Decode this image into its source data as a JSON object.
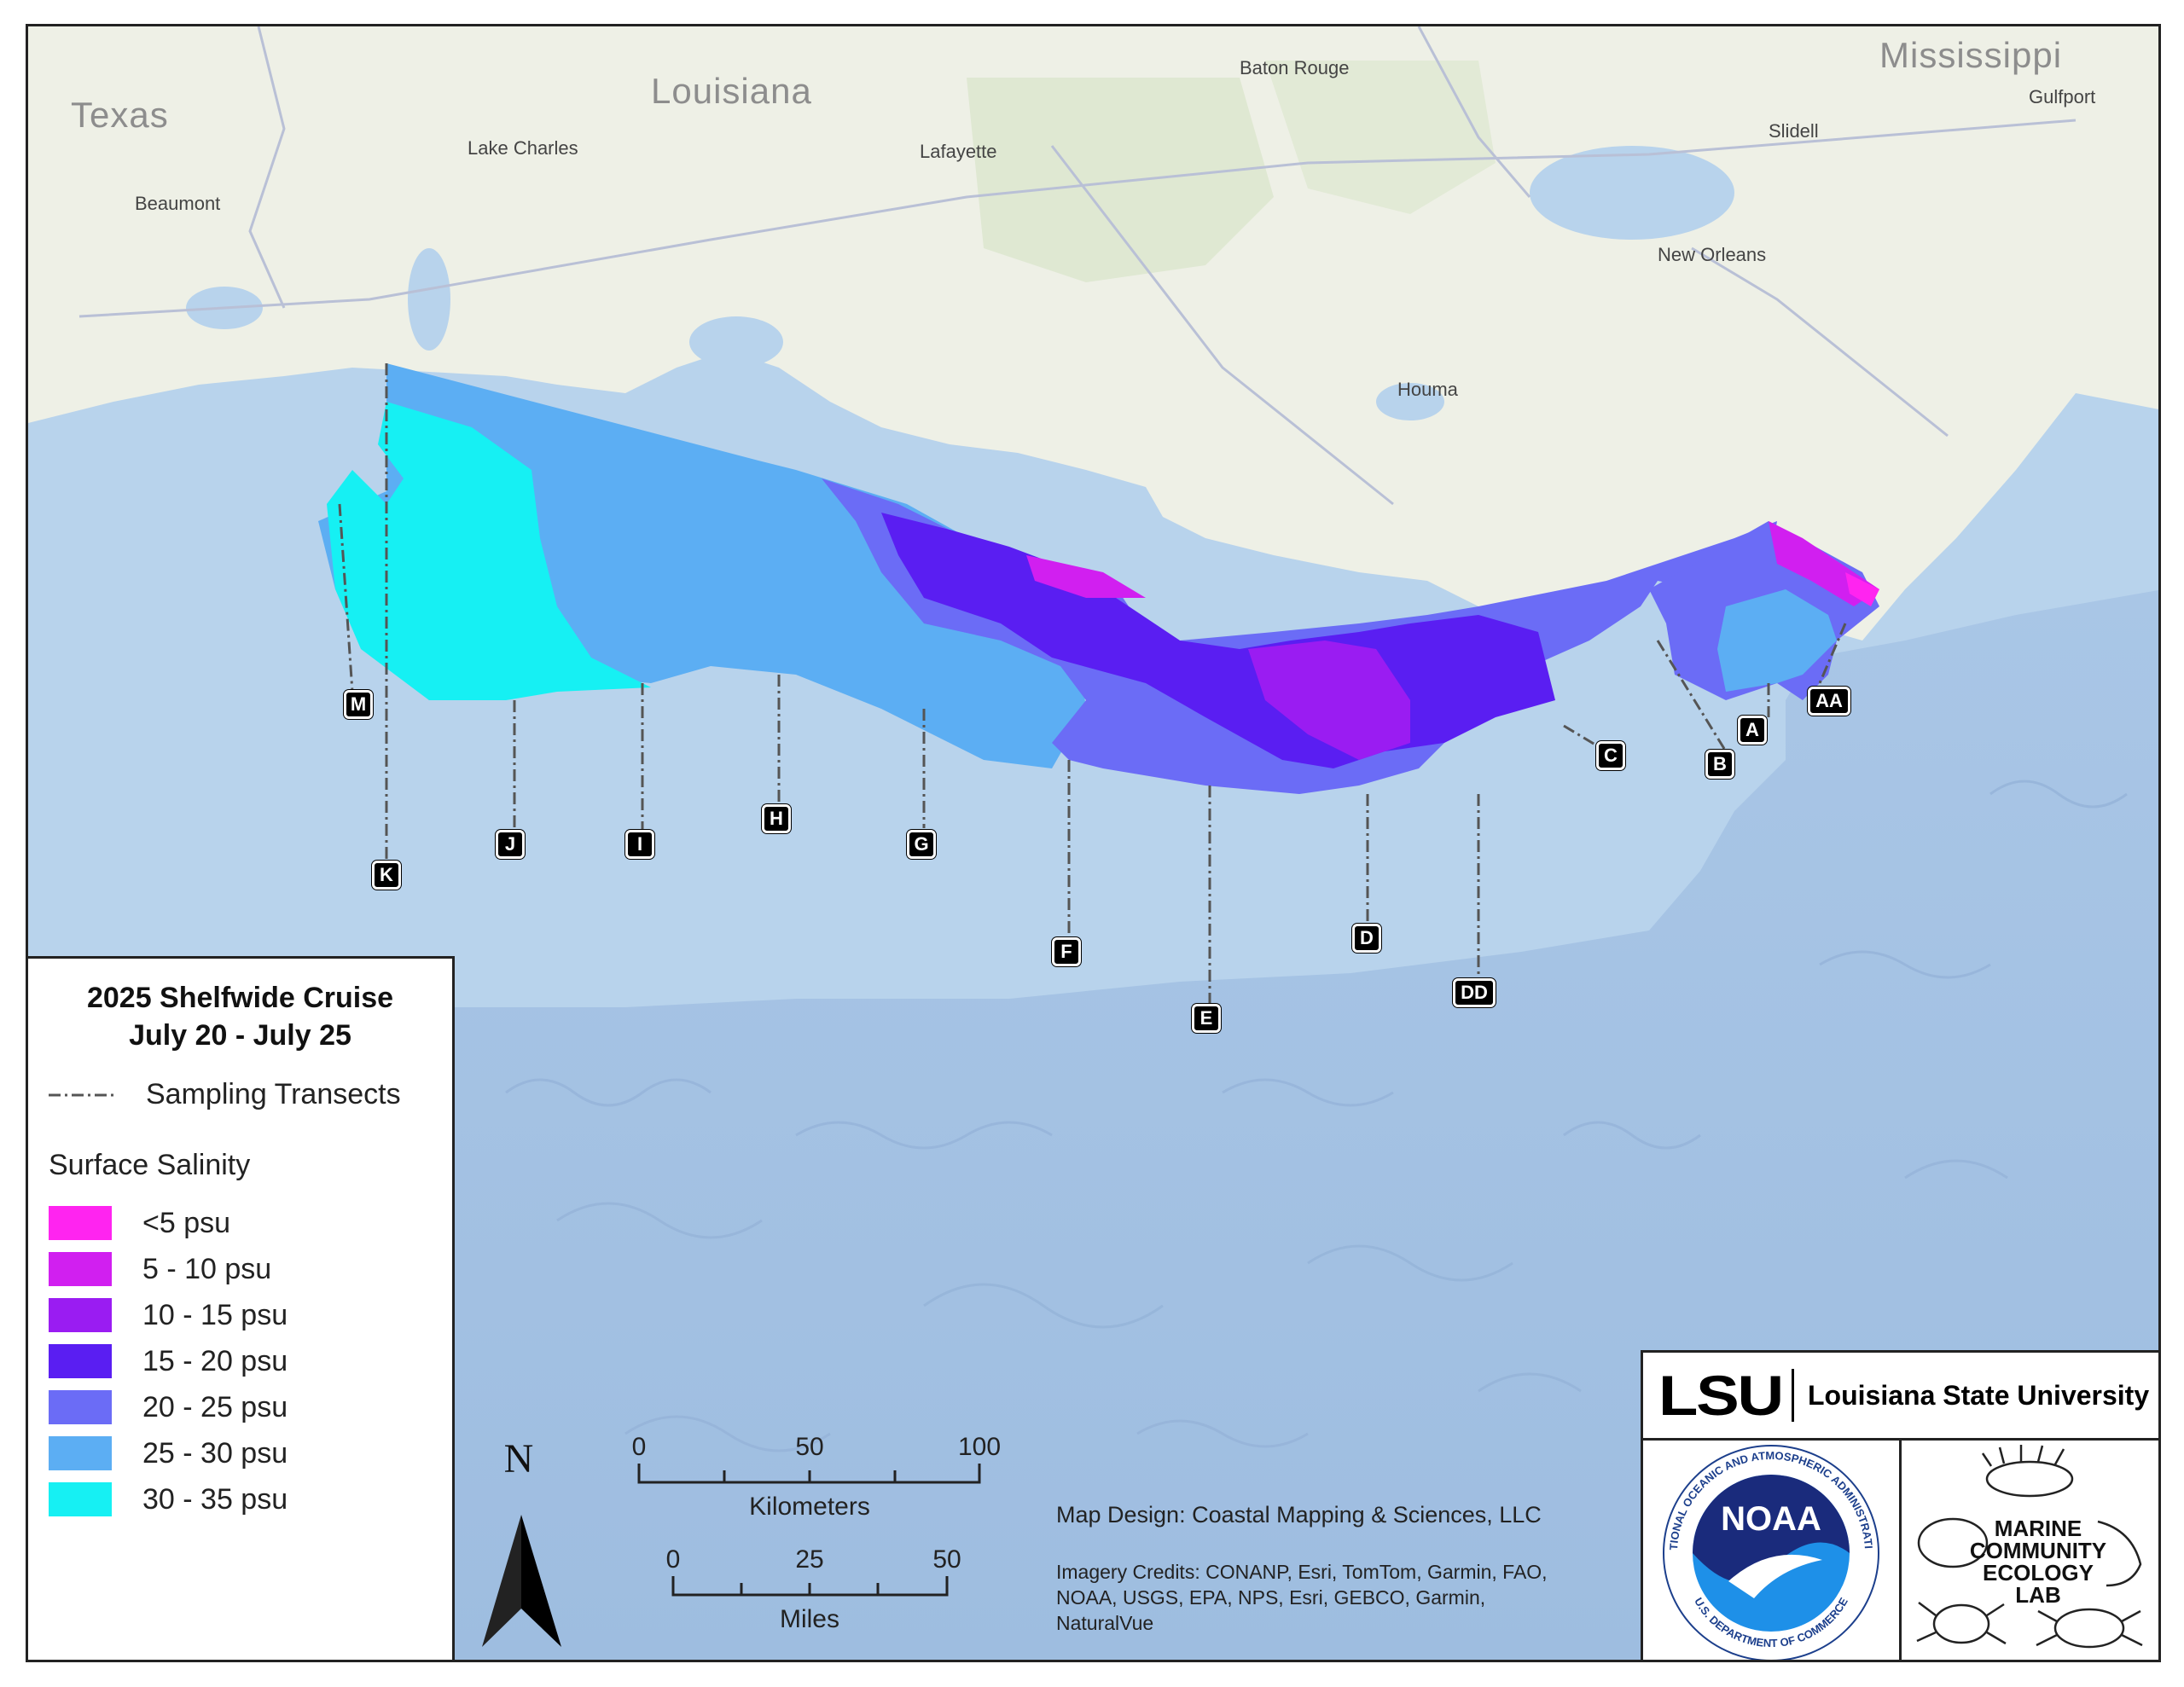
{
  "legend": {
    "title_line1": "2025 Shelfwide Cruise",
    "title_line2": "July 20 - July 25",
    "transects_label": "Sampling Transects",
    "salinity_header": "Surface Salinity",
    "classes": [
      {
        "label": "<5 psu",
        "color": "#ff24f0"
      },
      {
        "label": "5 - 10 psu",
        "color": "#d11ff0"
      },
      {
        "label": "10 - 15 psu",
        "color": "#9a1cf2"
      },
      {
        "label": "15 - 20  psu",
        "color": "#5a1ef2"
      },
      {
        "label": "20 - 25 psu",
        "color": "#6b6cf6"
      },
      {
        "label": "25 - 30 psu",
        "color": "#5caef3"
      },
      {
        "label": "30 - 35 psu",
        "color": "#16f0f3"
      }
    ]
  },
  "places": {
    "texas": "Texas",
    "louisiana": "Louisiana",
    "mississippi": "Mississippi",
    "baton_rouge": "Baton Rouge",
    "lake_charles": "Lake Charles",
    "lafayette": "Lafayette",
    "beaumont": "Beaumont",
    "slidell": "Slidell",
    "gulfport": "Gulfport",
    "new_orleans": "New Orleans",
    "houma": "Houma"
  },
  "transects": [
    "M",
    "K",
    "J",
    "I",
    "H",
    "G",
    "F",
    "E",
    "D",
    "DD",
    "C",
    "B",
    "A",
    "AA"
  ],
  "scale": {
    "km_ticks": [
      "0",
      "50",
      "100"
    ],
    "km_label": "Kilometers",
    "mi_ticks": [
      "0",
      "25",
      "50"
    ],
    "mi_label": "Miles"
  },
  "north_label": "N",
  "credits": {
    "design": "Map Design: Coastal Mapping & Sciences, LLC",
    "imagery": "Imagery Credits: CONANP, Esri, TomTom, Garmin, FAO, NOAA, USGS, EPA, NPS, Esri, GEBCO, Garmin, NaturalVue"
  },
  "logos": {
    "lsu_mark": "LSU",
    "lsu_name": "Louisiana State University",
    "noaa_word": "NOAA",
    "noaa_ring_top": "NATIONAL OCEANIC AND ATMOSPHERIC ADMINISTRATION",
    "noaa_ring_bottom": "U.S. DEPARTMENT OF COMMERCE",
    "mcel_line1": "MARINE",
    "mcel_line2": "COMMUNITY",
    "mcel_line3": "ECOLOGY",
    "mcel_line4": "LAB"
  }
}
